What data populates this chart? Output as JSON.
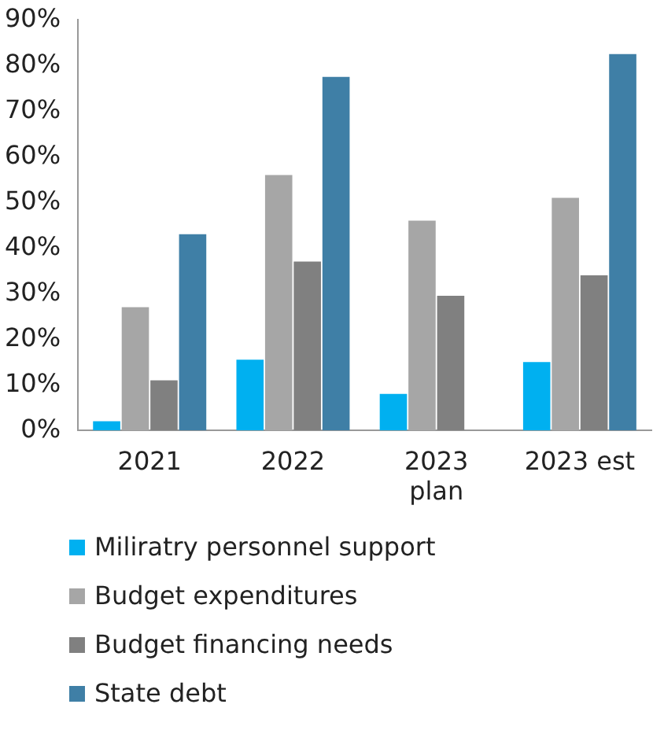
{
  "chart_data": {
    "type": "bar",
    "categories": [
      "2021",
      "2022",
      "2023\nplan",
      "2023 est"
    ],
    "series": [
      {
        "name": "Miliratry personnel support",
        "color": "#00b0f0",
        "values": [
          2,
          15.5,
          8,
          15
        ]
      },
      {
        "name": "Budget expenditures",
        "color": "#a6a6a6",
        "values": [
          27,
          56,
          46,
          51
        ]
      },
      {
        "name": "Budget financing needs",
        "color": "#808080",
        "values": [
          11,
          37,
          29.5,
          34
        ]
      },
      {
        "name": "State debt",
        "color": "#3f7fa6",
        "values": [
          43,
          77.5,
          null,
          82.5
        ]
      }
    ],
    "ylim": [
      0,
      90
    ],
    "yticks": [
      {
        "value": 0,
        "label": "0%"
      },
      {
        "value": 10,
        "label": "10%"
      },
      {
        "value": 20,
        "label": "20%"
      },
      {
        "value": 30,
        "label": "30%"
      },
      {
        "value": 40,
        "label": "40%"
      },
      {
        "value": 50,
        "label": "50%"
      },
      {
        "value": 60,
        "label": "60%"
      },
      {
        "value": 70,
        "label": "70%"
      },
      {
        "value": 80,
        "label": "80%"
      },
      {
        "value": 90,
        "label": "90%"
      }
    ],
    "grid": false,
    "legend": "bottom"
  }
}
